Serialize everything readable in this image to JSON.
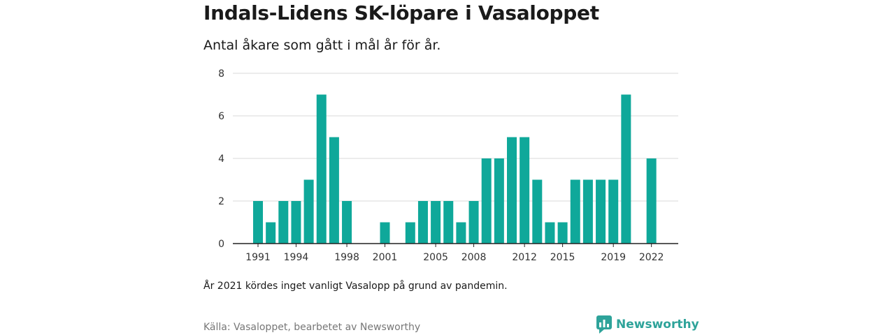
{
  "title": "Indals-Lidens SK-löpare i Vasaloppet",
  "subtitle": "Antal åkare som gått i mål år för år.",
  "note": "År 2021 kördes inget vanligt Vasalopp på grund av pandemin.",
  "source": "Källa: Vasaloppet, bearbetet av Newsworthy",
  "brand": {
    "name": "Newsworthy",
    "icon": "newsworthy-logo-icon",
    "color": "#2ea39a"
  },
  "chart_data": {
    "type": "bar",
    "color": "#0fa89a",
    "x": [
      1991,
      1992,
      1993,
      1994,
      1995,
      1996,
      1997,
      1998,
      1999,
      2000,
      2001,
      2002,
      2003,
      2004,
      2005,
      2006,
      2007,
      2008,
      2009,
      2010,
      2011,
      2012,
      2013,
      2014,
      2015,
      2016,
      2017,
      2018,
      2019,
      2020,
      2021,
      2022
    ],
    "values": [
      2,
      1,
      2,
      2,
      3,
      7,
      5,
      2,
      0,
      0,
      1,
      0,
      1,
      2,
      2,
      2,
      1,
      2,
      4,
      4,
      5,
      5,
      3,
      1,
      1,
      3,
      3,
      3,
      3,
      7,
      0,
      4
    ],
    "x_tick_labels": [
      "1991",
      "1994",
      "1998",
      "2001",
      "2005",
      "2008",
      "2012",
      "2015",
      "2019",
      "2022"
    ],
    "y_ticks": [
      0,
      2,
      4,
      6,
      8
    ],
    "ylim": [
      0,
      8
    ],
    "grid": true,
    "legend": "none"
  }
}
